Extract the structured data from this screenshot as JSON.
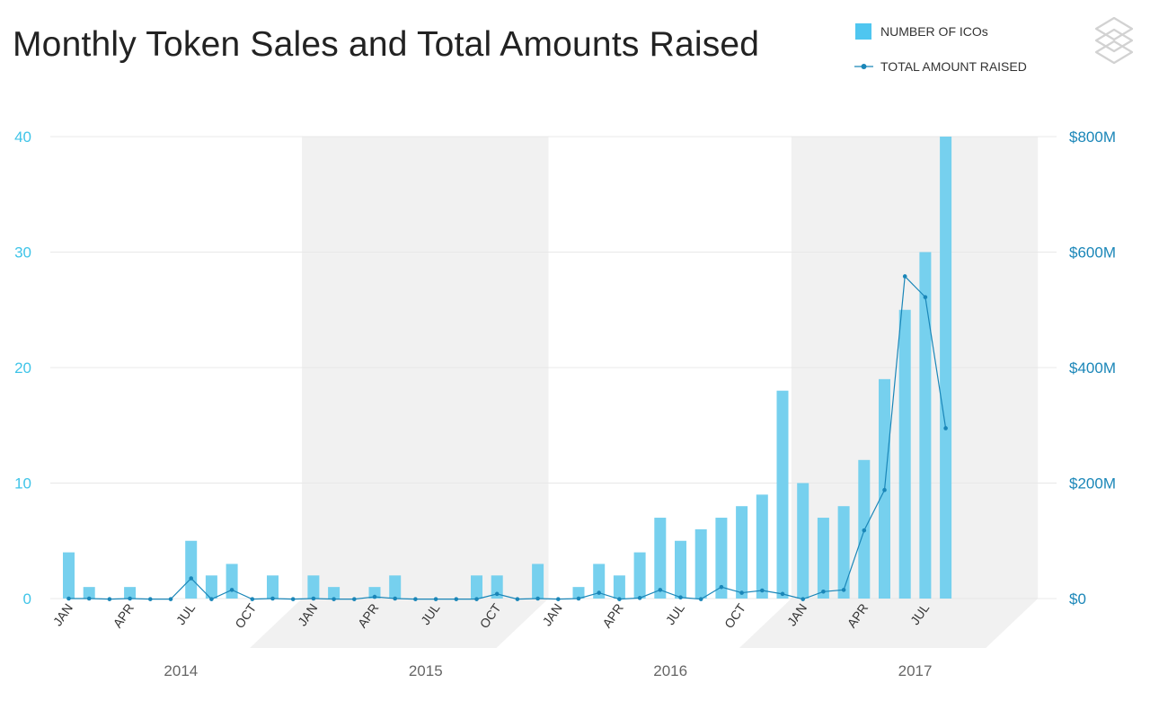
{
  "title": "Monthly Token Sales and Total Amounts Raised",
  "colors": {
    "bar": "#76d0ee",
    "line": "#1a86b8",
    "left_axis": "#3fc4e8",
    "right_axis": "#1a86b8",
    "shade": "#f1f1f1",
    "grid": "#e8e8e8"
  },
  "chart_data": {
    "type": "bar",
    "legend": {
      "position": "top-right",
      "bar_label": "NUMBER OF ICOs",
      "line_label": "TOTAL AMOUNT RAISED"
    },
    "x": [
      "2014-01",
      "2014-02",
      "2014-03",
      "2014-04",
      "2014-05",
      "2014-06",
      "2014-07",
      "2014-08",
      "2014-09",
      "2014-10",
      "2014-11",
      "2014-12",
      "2015-01",
      "2015-02",
      "2015-03",
      "2015-04",
      "2015-05",
      "2015-06",
      "2015-07",
      "2015-08",
      "2015-09",
      "2015-10",
      "2015-11",
      "2015-12",
      "2016-01",
      "2016-02",
      "2016-03",
      "2016-04",
      "2016-05",
      "2016-06",
      "2016-07",
      "2016-08",
      "2016-09",
      "2016-10",
      "2016-11",
      "2016-12",
      "2017-01",
      "2017-02",
      "2017-03",
      "2017-04",
      "2017-05",
      "2017-06",
      "2017-07",
      "2017-08"
    ],
    "x_tick_labels": [
      {
        "index": 0,
        "label": "JAN"
      },
      {
        "index": 3,
        "label": "APR"
      },
      {
        "index": 6,
        "label": "JUL"
      },
      {
        "index": 9,
        "label": "OCT"
      },
      {
        "index": 12,
        "label": "JAN"
      },
      {
        "index": 15,
        "label": "APR"
      },
      {
        "index": 18,
        "label": "JUL"
      },
      {
        "index": 21,
        "label": "OCT"
      },
      {
        "index": 24,
        "label": "JAN"
      },
      {
        "index": 27,
        "label": "APR"
      },
      {
        "index": 30,
        "label": "JUL"
      },
      {
        "index": 33,
        "label": "OCT"
      },
      {
        "index": 36,
        "label": "JAN"
      },
      {
        "index": 39,
        "label": "APR"
      },
      {
        "index": 42,
        "label": "JUL"
      }
    ],
    "years": [
      "2014",
      "2015",
      "2016",
      "2017"
    ],
    "series": [
      {
        "type": "bar",
        "name": "NUMBER OF ICOs",
        "axis": "left",
        "values": [
          4,
          1,
          0,
          1,
          0,
          0,
          5,
          2,
          3,
          0,
          2,
          0,
          2,
          1,
          0,
          1,
          2,
          0,
          0,
          0,
          2,
          2,
          0,
          3,
          0,
          1,
          3,
          2,
          4,
          7,
          5,
          6,
          7,
          8,
          9,
          18,
          10,
          7,
          8,
          12,
          19,
          25,
          30,
          40
        ]
      },
      {
        "type": "line",
        "name": "TOTAL AMOUNT RAISED",
        "axis": "right",
        "values": [
          0,
          0,
          -1,
          0,
          -1,
          -1,
          35,
          -1,
          15,
          -1,
          0,
          -1,
          0,
          -1,
          -1,
          3,
          0,
          -1,
          -1,
          -1,
          -1,
          8,
          -1,
          0,
          -1,
          0,
          10,
          -1,
          1,
          15,
          2,
          -1,
          20,
          10,
          14,
          8,
          -1,
          12,
          15,
          118,
          188,
          558,
          522,
          295
        ]
      }
    ],
    "y_left": {
      "ylim": [
        0,
        40
      ],
      "ticks": [
        "0",
        "10",
        "20",
        "30",
        "40"
      ]
    },
    "y_right": {
      "ylim": [
        0,
        800
      ],
      "unit": "$M",
      "ticks": [
        "$0",
        "$200M",
        "$400M",
        "$600M",
        "$800M"
      ]
    },
    "grid": true
  }
}
